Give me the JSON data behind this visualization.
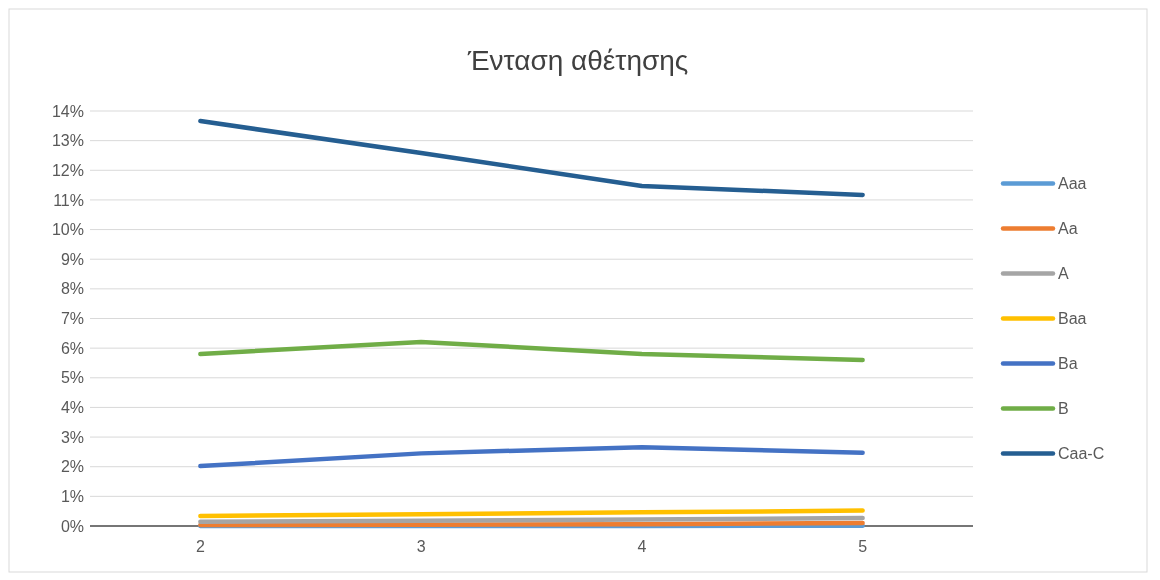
{
  "chart_data": {
    "type": "line",
    "title": "Ένταση αθέτησης",
    "categories": [
      "2",
      "3",
      "4",
      "5"
    ],
    "ylim": [
      0,
      0.14
    ],
    "yticks": [
      {
        "value": 0,
        "label": "0%"
      },
      {
        "value": 0.01,
        "label": "1%"
      },
      {
        "value": 0.02,
        "label": "2%"
      },
      {
        "value": 0.03,
        "label": "3%"
      },
      {
        "value": 0.04,
        "label": "4%"
      },
      {
        "value": 0.05,
        "label": "5%"
      },
      {
        "value": 0.06,
        "label": "6%"
      },
      {
        "value": 0.07,
        "label": "7%"
      },
      {
        "value": 0.08,
        "label": "8%"
      },
      {
        "value": 0.09,
        "label": "9%"
      },
      {
        "value": 0.1,
        "label": "10%"
      },
      {
        "value": 0.11,
        "label": "11%"
      },
      {
        "value": 0.12,
        "label": "12%"
      },
      {
        "value": 0.13,
        "label": "13%"
      },
      {
        "value": 0.14,
        "label": "14%"
      }
    ],
    "grid": "y",
    "legend": "right",
    "marker": "none",
    "series": [
      {
        "name": "Aaa",
        "color": "#5b9bd5",
        "values": [
          0,
          0,
          0,
          0.0001
        ]
      },
      {
        "name": "Aa",
        "color": "#ed7d31",
        "values": [
          0.0003,
          0.0004,
          0.0006,
          0.001
        ]
      },
      {
        "name": "A",
        "color": "#a5a5a5",
        "values": [
          0.0014,
          0.0018,
          0.0022,
          0.0027
        ]
      },
      {
        "name": "Baa",
        "color": "#ffc000",
        "values": [
          0.0034,
          0.004,
          0.0046,
          0.0052
        ]
      },
      {
        "name": "Ba",
        "color": "#4472c4",
        "values": [
          0.0202,
          0.0245,
          0.0266,
          0.0247
        ]
      },
      {
        "name": "B",
        "color": "#70ad47",
        "values": [
          0.058,
          0.0621,
          0.058,
          0.056
        ]
      },
      {
        "name": "Caa-C",
        "color": "#255e91",
        "values": [
          0.1366,
          0.1258,
          0.1147,
          0.1117
        ]
      }
    ]
  }
}
